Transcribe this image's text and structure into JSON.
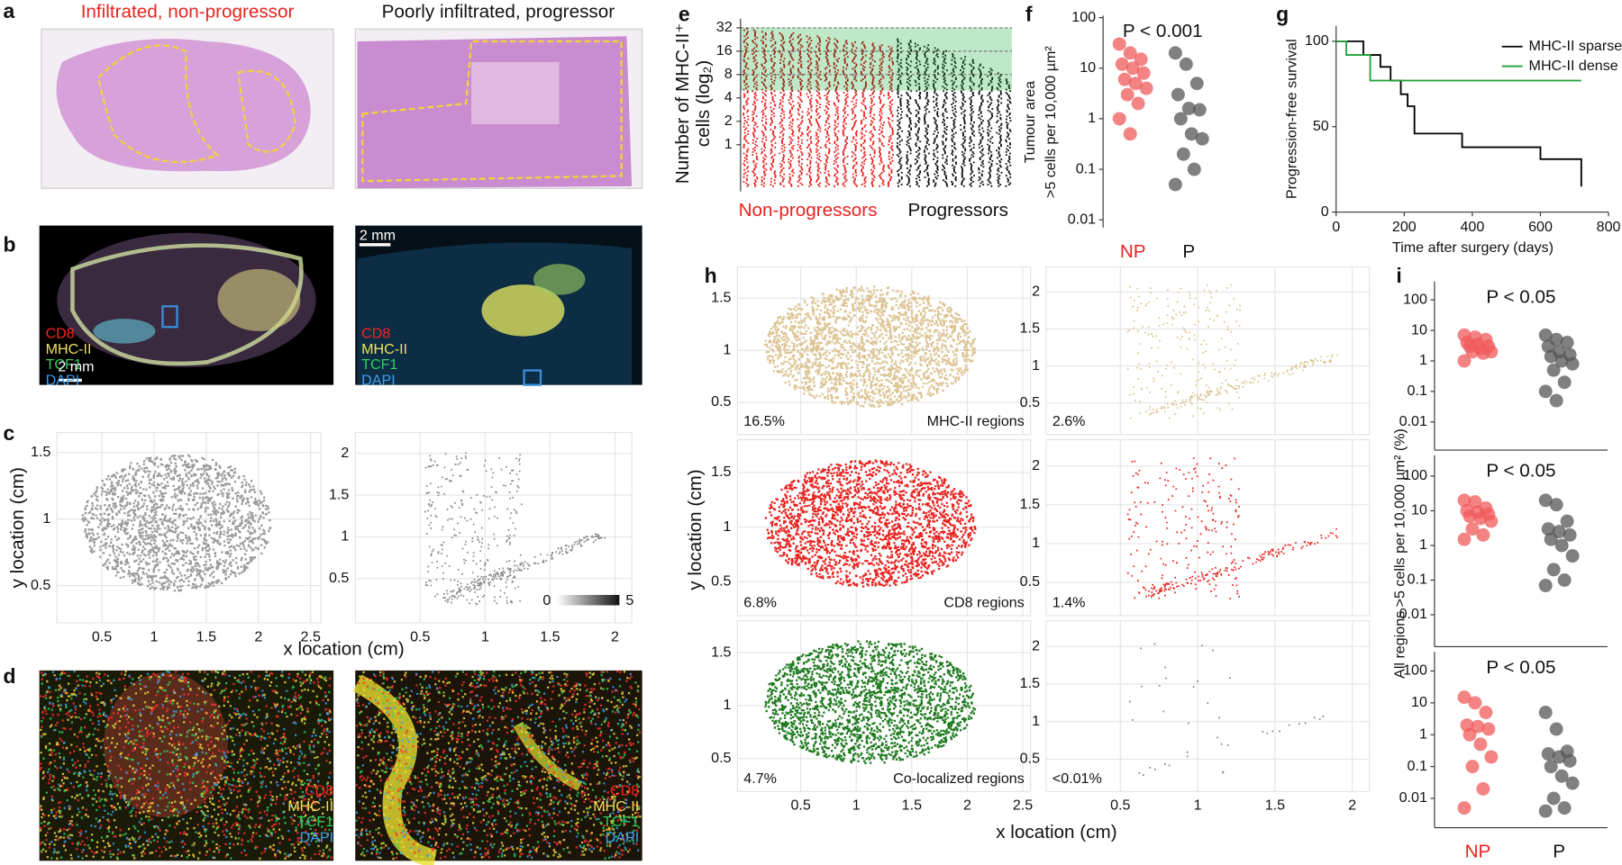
{
  "panel_labels": [
    "a",
    "b",
    "c",
    "d",
    "e",
    "f",
    "g",
    "h",
    "i"
  ],
  "a": {
    "titles": [
      "Infiltrated, non-progressor",
      "Poorly infiltrated, progressor"
    ]
  },
  "b": {
    "channels": [
      "CD8",
      "MHC-II",
      "TCF1",
      "DAPI"
    ],
    "scale_bar": "2 mm"
  },
  "c": {
    "xlabel": "x location (cm)",
    "ylabel": "y location (cm)",
    "panels": [
      {
        "xlim": [
          0.07,
          2.6
        ],
        "ylim": [
          0.22,
          1.65
        ],
        "xticks": [
          0.5,
          1,
          1.5,
          2,
          2.5
        ],
        "yticks": [
          0.5,
          1,
          1.5
        ]
      },
      {
        "xlim": [
          0,
          2.13
        ],
        "ylim": [
          -0.03,
          2.25
        ],
        "xticks": [
          0.5,
          1,
          1.5,
          2
        ],
        "yticks": [
          0.5,
          1,
          1.5,
          2
        ]
      }
    ],
    "colorbar_ticks": [
      0,
      5
    ]
  },
  "d": {
    "channels": [
      "CD8",
      "MHC-II",
      "TCF1",
      "DAPI"
    ]
  },
  "h": {
    "xlabel": "x location (cm)",
    "ylabel": "y location (cm)",
    "panels": [
      {
        "xlim": [
          -0.07,
          2.57
        ],
        "ylim": [
          0.19,
          1.8
        ],
        "xticks": [
          0.5,
          1,
          1.5,
          2,
          2.5
        ],
        "yticks": [
          0.5,
          1,
          1.5
        ],
        "percent": "16.5%",
        "label": "MHC-II regions",
        "color": "#dcc493"
      },
      {
        "xlim": [
          0.02,
          2.11
        ],
        "ylim": [
          0.07,
          2.34
        ],
        "xticks": [
          0.5,
          1,
          1.5,
          2
        ],
        "yticks": [
          0.5,
          1,
          1.5,
          2
        ],
        "percent": "2.6%",
        "color": "#dcc493"
      },
      {
        "xlim": [
          -0.07,
          2.57
        ],
        "ylim": [
          0.19,
          1.8
        ],
        "xticks": [
          0.5,
          1,
          1.5,
          2,
          2.5
        ],
        "yticks": [
          0.5,
          1,
          1.5
        ],
        "percent": "6.8%",
        "label": "CD8 regions",
        "color": "#e8231f"
      },
      {
        "xlim": [
          0.02,
          2.11
        ],
        "ylim": [
          0.07,
          2.34
        ],
        "xticks": [
          0.5,
          1,
          1.5,
          2
        ],
        "yticks": [
          0.5,
          1,
          1.5,
          2
        ],
        "percent": "1.4%",
        "color": "#e8231f"
      },
      {
        "xlim": [
          -0.07,
          2.57
        ],
        "ylim": [
          0.19,
          1.8
        ],
        "xticks": [
          0.5,
          1,
          1.5,
          2,
          2.5
        ],
        "yticks": [
          0.5,
          1,
          1.5
        ],
        "percent": "4.7%",
        "label": "Co-localized regions",
        "color": "#1f7a1f"
      },
      {
        "xlim": [
          0.02,
          2.11
        ],
        "ylim": [
          0.07,
          2.34
        ],
        "xticks": [
          0.5,
          1,
          1.5,
          2
        ],
        "yticks": [
          0.5,
          1,
          1.5,
          2
        ],
        "percent": "<0.01%",
        "color": "#7a8a7a"
      }
    ]
  },
  "i": {
    "ylabel": "All regions >5 cells per 10,000 µm² (%)"
  },
  "chart_data": [
    {
      "type": "strip",
      "ylabel": [
        "Number of MHC-II⁺",
        "cells (log₂)"
      ],
      "log_base": 2,
      "ylim": [
        0.25,
        42
      ],
      "yticks": [
        1,
        2,
        4,
        8,
        16,
        32
      ],
      "categories": [
        "Non-progressors",
        "Progressors"
      ],
      "colors": [
        "#e8231f",
        "#111111"
      ],
      "shade_from": 5,
      "shade_color": "#bfe8c8"
    },
    {
      "type": "scatter",
      "ylabel": [
        "Tumour area",
        ">5 cells per 10,000 µm²"
      ],
      "annotation": "P < 0.001",
      "log": true,
      "ylim": [
        0.007,
        110
      ],
      "yticks": [
        0.01,
        0.1,
        1,
        10,
        100
      ],
      "categories": [
        "NP",
        "P"
      ],
      "series": [
        {
          "color": "#f05a5a",
          "values": [
            30,
            20,
            15,
            12,
            10,
            8,
            6,
            5,
            4,
            3,
            2,
            1,
            0.5
          ]
        },
        {
          "color": "#555555",
          "values": [
            20,
            12,
            5,
            3,
            1.6,
            1.5,
            1,
            0.5,
            0.4,
            0.2,
            0.1,
            0.05
          ]
        }
      ]
    },
    {
      "type": "line",
      "ylabel": "Progression-free survival",
      "xlabel": "Time after surgery (days)",
      "xlim": [
        0,
        800
      ],
      "xticks": [
        0,
        200,
        400,
        600,
        800
      ],
      "ylim": [
        0,
        109
      ],
      "yticks": [
        0,
        50,
        100
      ],
      "legend": "upper right",
      "series": [
        {
          "name": "MHC-II sparse",
          "color": "#000000",
          "x": [
            0,
            80,
            80,
            130,
            130,
            160,
            160,
            190,
            190,
            210,
            210,
            230,
            230,
            370,
            370,
            600,
            600,
            720,
            720
          ],
          "values": [
            100,
            100,
            92,
            92,
            85,
            85,
            77,
            77,
            69,
            69,
            62,
            62,
            46,
            46,
            38,
            38,
            31,
            31,
            15
          ]
        },
        {
          "name": "MHC-II dense",
          "color": "#22a03a",
          "x": [
            0,
            30,
            30,
            100,
            100,
            720
          ],
          "values": [
            100,
            100,
            92,
            92,
            77,
            77
          ]
        }
      ]
    },
    {
      "type": "scatter",
      "annotation": "P < 0.05",
      "log": true,
      "ylim": [
        0.0012,
        400
      ],
      "yticks": [
        0.01,
        0.1,
        1,
        10,
        100
      ],
      "series": [
        {
          "color": "#f05a5a",
          "values": [
            7,
            6,
            5,
            4,
            3.5,
            3,
            3,
            2.5,
            2,
            2,
            1.8,
            1
          ]
        },
        {
          "color": "#555555",
          "values": [
            7,
            5,
            4,
            3,
            2,
            1.6,
            1.4,
            1,
            0.8,
            0.5,
            0.2,
            0.1,
            0.05
          ]
        }
      ]
    },
    {
      "type": "scatter",
      "annotation": "P < 0.05",
      "log": true,
      "ylim": [
        0.0012,
        400
      ],
      "yticks": [
        0.01,
        0.1,
        1,
        10,
        100
      ],
      "series": [
        {
          "color": "#f05a5a",
          "values": [
            20,
            18,
            12,
            10,
            9,
            8,
            7,
            6,
            5,
            3,
            2,
            1.5
          ]
        },
        {
          "color": "#555555",
          "values": [
            20,
            15,
            5,
            3,
            2.5,
            2,
            1.5,
            1,
            0.5,
            0.2,
            0.1,
            0.07
          ]
        }
      ]
    },
    {
      "type": "scatter",
      "annotation": "P < 0.05",
      "log": true,
      "ylim": [
        0.0012,
        400
      ],
      "yticks": [
        0.01,
        0.1,
        1,
        10,
        100
      ],
      "categories": [
        "NP",
        "P"
      ],
      "series": [
        {
          "color": "#f05a5a",
          "values": [
            15,
            10,
            5,
            2,
            1.8,
            1.5,
            1,
            0.5,
            0.2,
            0.1,
            0.02,
            0.005
          ]
        },
        {
          "color": "#555555",
          "values": [
            5,
            1.5,
            0.3,
            0.25,
            0.2,
            0.15,
            0.1,
            0.05,
            0.03,
            0.01,
            0.005,
            0.004
          ]
        }
      ]
    }
  ]
}
